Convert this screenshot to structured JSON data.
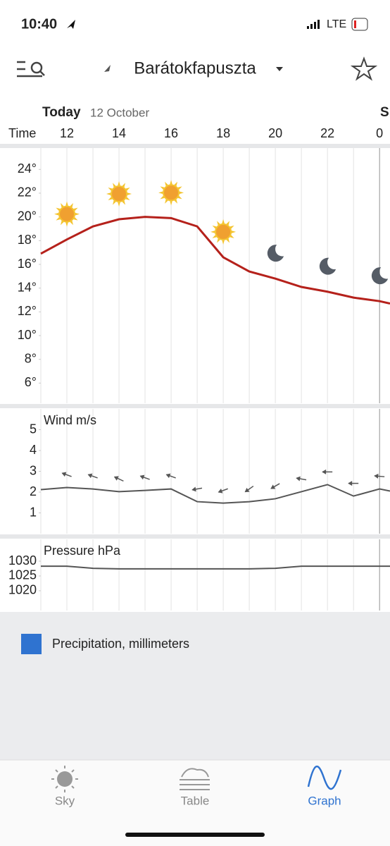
{
  "status_bar": {
    "time": "10:40",
    "network": "LTE"
  },
  "header": {
    "location": "Barátokfapuszta"
  },
  "date": {
    "day": "Today",
    "date": "12 October",
    "next_day": "S"
  },
  "time_label": "Time",
  "chart_data": [
    {
      "type": "line",
      "color": "#b5211b",
      "x": [
        11,
        12,
        13,
        14,
        15,
        16,
        17,
        18,
        19,
        20,
        21,
        22,
        23,
        24,
        24.4
      ],
      "values": [
        16.9,
        18.1,
        19.2,
        19.8,
        20.0,
        19.9,
        19.2,
        16.6,
        15.4,
        14.8,
        14.1,
        13.7,
        13.2,
        12.9,
        12.7
      ],
      "xlim": [
        11,
        24.4
      ],
      "xticks": [
        12,
        14,
        16,
        18,
        20,
        22,
        {
          "value": 24,
          "label": "0"
        }
      ],
      "ylim": [
        4.3,
        25.8
      ],
      "yticks": [
        {
          "value": 24,
          "label": "24°"
        },
        {
          "value": 22,
          "label": "22°"
        },
        {
          "value": 20,
          "label": "20°"
        },
        {
          "value": 18,
          "label": "18°"
        },
        {
          "value": 16,
          "label": "16°"
        },
        {
          "value": 14,
          "label": "14°"
        },
        {
          "value": 12,
          "label": "12°"
        },
        {
          "value": 10,
          "label": "10°"
        },
        {
          "value": 8,
          "label": "8°"
        },
        {
          "value": 6,
          "label": "6°"
        }
      ],
      "icons": {
        "x": [
          12,
          14,
          16,
          18,
          20,
          22,
          24
        ],
        "kinds": [
          "sun",
          "sun",
          "sun",
          "sun",
          "moon",
          "moon",
          "moon"
        ]
      }
    },
    {
      "type": "line",
      "title": "Wind m/s",
      "color": "#555555",
      "x": [
        11,
        12,
        13,
        14,
        15,
        16,
        17,
        18,
        19,
        20,
        21,
        22,
        23,
        24,
        24.4
      ],
      "values": [
        2.12,
        2.22,
        2.15,
        2.02,
        2.08,
        2.15,
        1.54,
        1.47,
        1.54,
        1.68,
        2.02,
        2.36,
        1.81,
        2.15,
        2.05
      ],
      "xlim": [
        11,
        24.4
      ],
      "ylim": [
        0,
        6
      ],
      "yticks": [
        5,
        4,
        3,
        2,
        1
      ],
      "arrows": {
        "x": [
          12,
          13,
          14,
          15,
          16,
          17,
          18,
          19,
          20,
          21,
          22,
          23,
          24
        ],
        "angles": [
          200,
          200,
          205,
          200,
          200,
          170,
          160,
          145,
          150,
          190,
          180,
          180,
          185
        ]
      }
    },
    {
      "type": "line",
      "title": "Pressure hPa",
      "color": "#555555",
      "x": [
        11,
        12,
        13,
        14,
        15,
        16,
        17,
        18,
        19,
        20,
        21,
        22,
        23,
        24,
        24.4
      ],
      "values": [
        1028.3,
        1028.3,
        1027.6,
        1027.4,
        1027.4,
        1027.4,
        1027.4,
        1027.4,
        1027.4,
        1027.6,
        1028.3,
        1028.3,
        1028.3,
        1028.3,
        1028.3
      ],
      "xlim": [
        11,
        24.4
      ],
      "ylim": [
        1013.3,
        1037.4
      ],
      "yticks": [
        1030,
        1025,
        1020
      ]
    }
  ],
  "legend": {
    "label": "Precipitation, millimeters",
    "color": "#2f73d0"
  },
  "tabs": [
    "Sky",
    "Table",
    "Graph"
  ]
}
